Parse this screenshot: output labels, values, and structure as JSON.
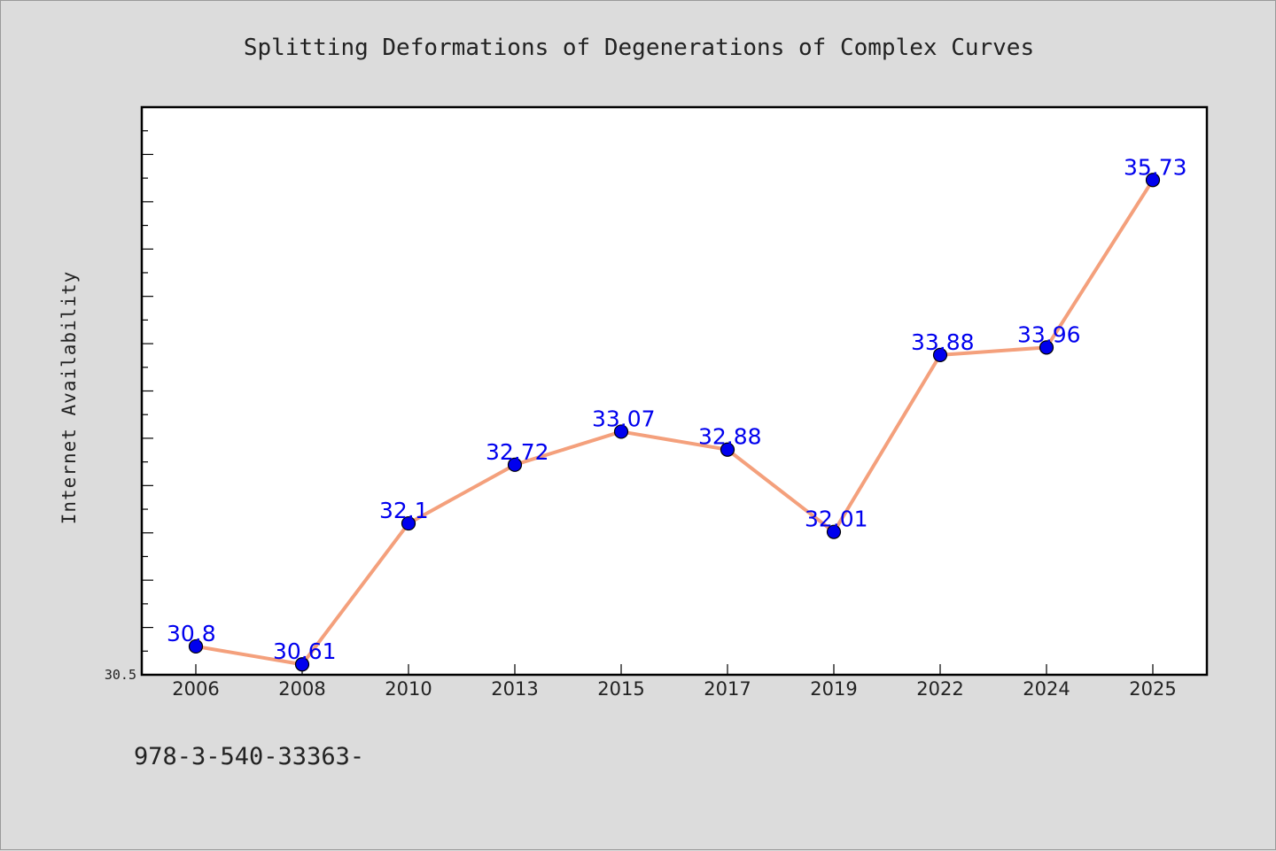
{
  "chart_data": {
    "type": "line",
    "title": "Splitting Deformations of Degenerations of Complex Curves",
    "xlabel": "",
    "ylabel": "Internet Availability",
    "categories": [
      "2006",
      "2008",
      "2010",
      "2013",
      "2015",
      "2017",
      "2019",
      "2022",
      "2024",
      "2025"
    ],
    "series": [
      {
        "values": [
          30.8,
          30.61,
          32.1,
          32.72,
          33.07,
          32.88,
          32.01,
          33.88,
          33.96,
          35.73
        ],
        "data_labels": [
          "30.8",
          "30.61",
          "32.1",
          "32.72",
          "33.07",
          "32.88",
          "32.01",
          "33.88",
          "33.96",
          "35.73"
        ]
      }
    ],
    "ylim": [
      30.5,
      36.5
    ],
    "ytick_labels": [
      "30.5"
    ],
    "grid": false,
    "legend": "none",
    "colors": {
      "line": "#f4a07c",
      "marker": "#0000ee",
      "data_label": "#0000ee",
      "plot_background": "#ffffff",
      "page_background": "#dcdcdc"
    }
  },
  "footnote": "978-3-540-33363-"
}
